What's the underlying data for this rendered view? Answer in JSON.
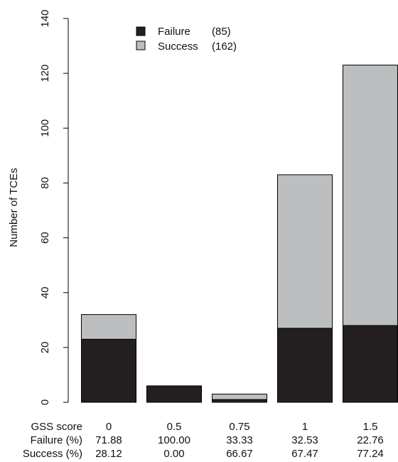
{
  "chart_data": {
    "type": "bar",
    "stacked": true,
    "ylabel": "Number of TCEs",
    "ylim": [
      0,
      140
    ],
    "yticks": [
      0,
      20,
      40,
      60,
      80,
      100,
      120,
      140
    ],
    "categories": [
      "0",
      "0.5",
      "0.75",
      "1",
      "1.5"
    ],
    "series": [
      {
        "name": "Failure",
        "values": [
          23,
          6,
          1,
          27,
          28
        ],
        "color": "#231f20"
      },
      {
        "name": "Success",
        "values": [
          9,
          0,
          2,
          56,
          95
        ],
        "color": "#bcbec0"
      }
    ],
    "legend": {
      "placement": "top-center",
      "entries": [
        {
          "label": "Failure",
          "count": "(85)"
        },
        {
          "label": "Success",
          "count": "(162)"
        }
      ]
    },
    "grid": false,
    "table": {
      "row_labels": [
        "GSS score",
        "Failure (%)",
        "Success (%)"
      ],
      "failure_pct": [
        "71.88",
        "100.00",
        "33.33",
        "32.53",
        "22.76"
      ],
      "success_pct": [
        "28.12",
        "0.00",
        "66.67",
        "67.47",
        "77.24"
      ]
    }
  }
}
